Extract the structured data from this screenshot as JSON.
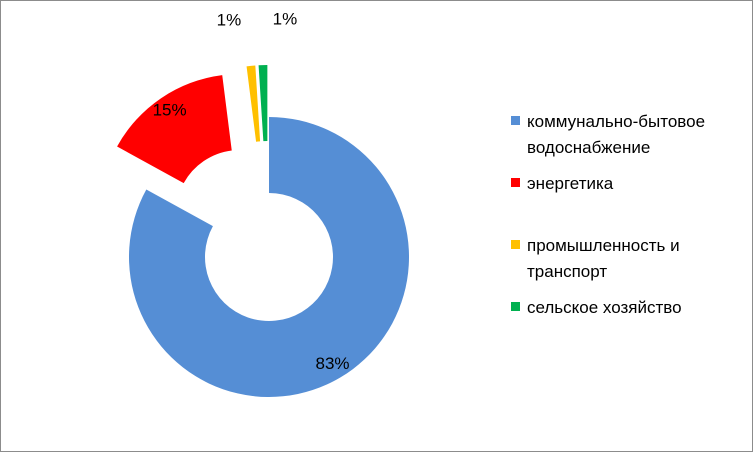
{
  "chart_data": {
    "type": "pie",
    "variant": "exploded-doughnut",
    "title": "",
    "legend_position": "right",
    "slices": [
      {
        "name": "коммунально-бытовое водоснабжение",
        "value": 83,
        "label": "83%",
        "color": "#558ed5"
      },
      {
        "name": "энергетика",
        "value": 15,
        "label": "15%",
        "color": "#ff0000"
      },
      {
        "name": "промышленность и транспорт",
        "value": 1,
        "label": "1%",
        "color": "#ffc000"
      },
      {
        "name": "сельское хозяйство",
        "value": 1,
        "label": "1%",
        "color": "#00b050"
      }
    ]
  }
}
